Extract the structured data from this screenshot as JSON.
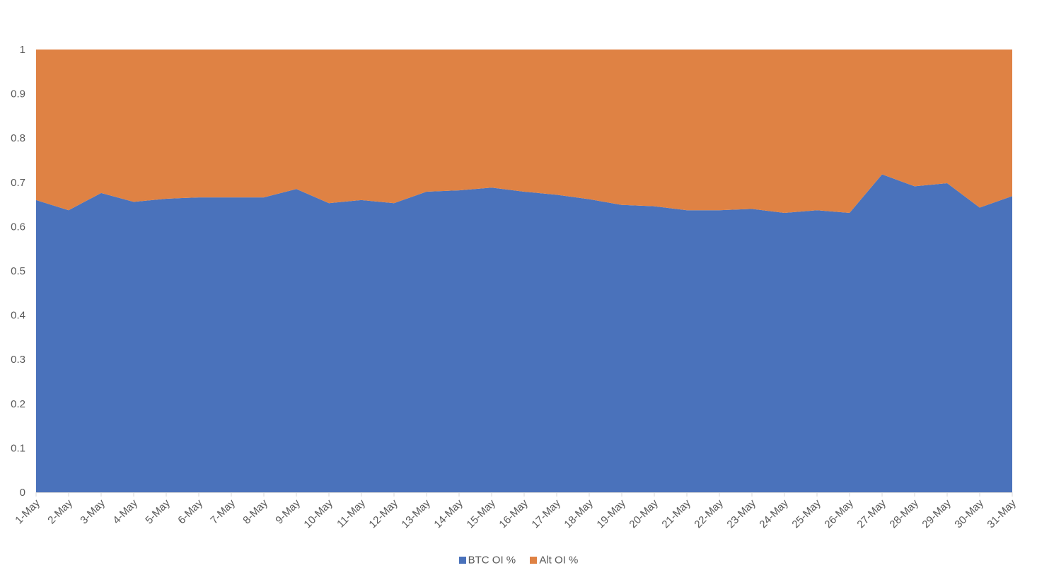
{
  "chart_data": {
    "type": "area",
    "stacked": true,
    "percent": true,
    "categories": [
      "1-May",
      "2-May",
      "3-May",
      "4-May",
      "5-May",
      "6-May",
      "7-May",
      "8-May",
      "9-May",
      "10-May",
      "11-May",
      "12-May",
      "13-May",
      "14-May",
      "15-May",
      "16-May",
      "17-May",
      "18-May",
      "19-May",
      "20-May",
      "21-May",
      "22-May",
      "23-May",
      "24-May",
      "25-May",
      "26-May",
      "27-May",
      "28-May",
      "29-May",
      "30-May",
      "31-May"
    ],
    "series": [
      {
        "name": "BTC OI %",
        "color": "#4a72bb",
        "values": [
          0.66,
          0.637,
          0.676,
          0.656,
          0.663,
          0.666,
          0.666,
          0.666,
          0.685,
          0.653,
          0.66,
          0.653,
          0.679,
          0.682,
          0.688,
          0.679,
          0.672,
          0.662,
          0.649,
          0.646,
          0.637,
          0.637,
          0.64,
          0.631,
          0.637,
          0.631,
          0.718,
          0.691,
          0.698,
          0.643,
          0.669
        ]
      },
      {
        "name": "Alt OI %",
        "color": "#df8244",
        "values": [
          0.34,
          0.363,
          0.324,
          0.344,
          0.337,
          0.334,
          0.334,
          0.334,
          0.315,
          0.347,
          0.34,
          0.347,
          0.321,
          0.318,
          0.312,
          0.321,
          0.328,
          0.338,
          0.351,
          0.354,
          0.363,
          0.363,
          0.36,
          0.369,
          0.363,
          0.369,
          0.282,
          0.309,
          0.302,
          0.357,
          0.331
        ]
      }
    ],
    "y_ticks": [
      "0",
      "0.1",
      "0.2",
      "0.3",
      "0.4",
      "0.5",
      "0.6",
      "0.7",
      "0.8",
      "0.9",
      "1"
    ],
    "ylim": [
      0,
      1
    ],
    "grid": false,
    "legend_position": "bottom",
    "title": "",
    "xlabel": "",
    "ylabel": ""
  },
  "colors": {
    "btc": "#4a72bb",
    "alt": "#df8244",
    "axis": "#d9d9d9",
    "text": "#595959"
  }
}
